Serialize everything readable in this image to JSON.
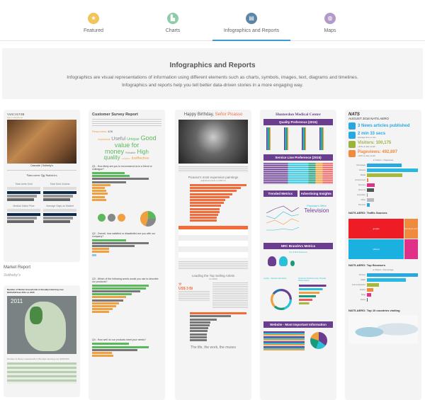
{
  "nav": {
    "tabs": [
      {
        "label": "Featured",
        "icon": "star-icon",
        "color": "#f2c55c"
      },
      {
        "label": "Charts",
        "icon": "bar-chart-icon",
        "color": "#8fcca8"
      },
      {
        "label": "Infographics and Reports",
        "icon": "report-icon",
        "color": "#5b86a8",
        "active": true
      },
      {
        "label": "Maps",
        "icon": "globe-icon",
        "color": "#b49ac9"
      }
    ]
  },
  "hero": {
    "title": "Infographics and Reports",
    "description": "Infographics are visual representations of information using different elements such as charts, symbols, images, text, diagrams and timelines. Infographics and reports help you tell better data-driven stories in a more engaging way."
  },
  "market": {
    "brand": "VANCOUVER",
    "subtitle": "Qg Comparison",
    "logo": "Cascade | Sotheby's",
    "stats_title": "Vancouver Qg Statistics",
    "panels": [
      "Total Units Sold",
      "Total Sold Volume",
      "Median Sales Price",
      "Average Days on Market"
    ],
    "caption_title": "Market Report",
    "caption_author": "Sotheby's"
  },
  "brooklyn": {
    "title": "Number of Renter Households in Brooklyn Earning over $100,000/Year 2011 vs 2015",
    "map_year": "2011",
    "table_title": "Number of Renter Households in Brooklyn Earning over $100,000"
  },
  "survey": {
    "title": "Customer Survey Report",
    "responses_label": "Responses:",
    "responses": "426",
    "words": [
      {
        "t": "Impractical",
        "c": "#f0a040",
        "s": 3.5
      },
      {
        "t": "Useful",
        "c": "#888",
        "s": 7
      },
      {
        "t": "Unique",
        "c": "#5cb85c",
        "s": 5.5
      },
      {
        "t": "Good value for money",
        "c": "#5cb85c",
        "s": 9
      },
      {
        "t": "Reliable",
        "c": "#888",
        "s": 4
      },
      {
        "t": "High quality",
        "c": "#5cb85c",
        "s": 8
      },
      {
        "t": "Unstable",
        "c": "#f0a040",
        "s": 3
      },
      {
        "t": "Ineffective",
        "c": "#f0a040",
        "s": 5.5
      }
    ],
    "q1": "Q1 - How likely are you to recommend us to a friend or colleague?",
    "q2": "Q2 - Overall, how satisfied or dissatisfied are you with our company?",
    "q3": "Q3 - Which of the following words would you use to describe our products?",
    "q4": "Q4 - How well do our products meet your needs?",
    "q1_bars": [
      {
        "v": 0.58,
        "c": "#5cb85c"
      },
      {
        "v": 0.66,
        "c": "#5cb85c"
      },
      {
        "v": 1,
        "c": "#777"
      },
      {
        "v": 0.6,
        "c": "#777"
      },
      {
        "v": 0.32,
        "c": "#f0a040"
      },
      {
        "v": 0.22,
        "c": "#f0a040"
      },
      {
        "v": 0.25,
        "c": "#f0a040"
      },
      {
        "v": 0.28,
        "c": "#f0a040"
      },
      {
        "v": 0.22,
        "c": "#f0a040"
      },
      {
        "v": 0.25,
        "c": "#f0a040"
      }
    ],
    "q2_bars": [
      {
        "v": 0.6,
        "c": "#5cb85c"
      },
      {
        "v": 1,
        "c": "#777"
      },
      {
        "v": 0.75,
        "c": "#777"
      },
      {
        "v": 0.3,
        "c": "#f0a040"
      },
      {
        "v": 0.3,
        "c": "#f0a040"
      },
      {
        "v": 0.08,
        "c": "#8ac8e8"
      }
    ],
    "q3_bars": [
      {
        "v": 1,
        "c": "#5cb85c"
      },
      {
        "v": 0.95,
        "c": "#5cb85c"
      },
      {
        "v": 0.85,
        "c": "#777"
      },
      {
        "v": 0.7,
        "c": "#5cb85c"
      },
      {
        "v": 0.6,
        "c": "#f0a040"
      },
      {
        "v": 0.55,
        "c": "#777"
      },
      {
        "v": 0.48,
        "c": "#f0a040"
      },
      {
        "v": 0.42,
        "c": "#f0a040"
      },
      {
        "v": 0.36,
        "c": "#f0a040"
      },
      {
        "v": 0.3,
        "c": "#f0a040"
      }
    ],
    "q4_bars": [
      {
        "v": 0.65,
        "c": "#5cb85c"
      },
      {
        "v": 1,
        "c": "#5cb85c"
      },
      {
        "v": 0.8,
        "c": "#777"
      },
      {
        "v": 0.35,
        "c": "#f0a040"
      },
      {
        "v": 0.38,
        "c": "#f0a040"
      }
    ]
  },
  "picasso": {
    "title_a": "Happy Birthday, ",
    "title_b": "Señor Picasso",
    "chart_title": "Picasso's most expensive paintings",
    "chart_sub": "(adjusted prices in USD m)",
    "paintings": [
      {
        "v": 1
      },
      {
        "v": 0.9
      },
      {
        "v": 0.82
      },
      {
        "v": 0.75
      },
      {
        "v": 0.7
      },
      {
        "v": 0.62
      },
      {
        "v": 0.6
      },
      {
        "v": 0.55
      },
      {
        "v": 0.53
      },
      {
        "v": 0.52
      },
      {
        "v": 0.5
      },
      {
        "v": 0.48
      },
      {
        "v": 0.47
      }
    ],
    "artists_title": "Leading the Top Selling Artists",
    "artists_year": "(in 2015)",
    "big_value": "US$ 3 Bi",
    "artists": [
      {
        "v": 1
      },
      {
        "v": 0.72
      },
      {
        "v": 0.48
      },
      {
        "v": 0.36
      },
      {
        "v": 0.35
      },
      {
        "v": 0.33
      },
      {
        "v": 0.31
      },
      {
        "v": 0.3
      },
      {
        "v": 0.3
      },
      {
        "v": 0.3
      }
    ],
    "footer": "The life, the work, the muses"
  },
  "hunterdon": {
    "title": "Hunterdon Medical Center",
    "s1": "Quality Preference (2015)",
    "s2": "Service Line Preference (2015)",
    "s3": "Trended Metrics",
    "s4": "Advertising Insights",
    "cloud_big": "Television",
    "cloud_small": "Physician's Office",
    "s5": "NRC BrandArc Metrics",
    "s6": "Top of Mind Awareness",
    "s7": "Loyalty - Selection Sensitivity",
    "s8": "Hunterdon Medical Center Hospital Differentiators",
    "s9": "Website - Most Important Information"
  },
  "nats": {
    "logo": "NATS",
    "month": "AUGUST 2016 NATS.AERO",
    "kpis": [
      {
        "icon": "monitor-icon",
        "value": "3 News articles published",
        "note": "",
        "color": "#29a8e0"
      },
      {
        "icon": "clock-icon",
        "value": "2 min 33 secs",
        "note": "Average time on site",
        "color": "#29a8e0"
      },
      {
        "icon": "user-icon",
        "value": "Visitors: 100,175",
        "note": "+41% on last month",
        "color": "#9bb33a"
      },
      {
        "icon": "eye-icon",
        "value": "Pageviews: 492,897",
        "note": "+20% on last month",
        "color": "#f08a3c"
      }
    ],
    "legend": [
      "Visitors",
      "Pageviews"
    ],
    "pages": [
      {
        "l": "Homepage",
        "v": 0.68,
        "c": "#29a8e0"
      },
      {
        "l": "Careers",
        "v": 1,
        "c": "#29b8e0"
      },
      {
        "l": "Media",
        "v": 0.7,
        "c": "#a8b83a"
      },
      {
        "l": "Environment",
        "v": 0.03,
        "c": "#f08a3c"
      },
      {
        "l": "Services",
        "v": 0.15,
        "c": "#e0308a"
      },
      {
        "l": "About us",
        "v": 0.14,
        "c": "#555"
      },
      {
        "l": "Innovation",
        "v": 0.01,
        "c": "#999"
      },
      {
        "l": "Other",
        "v": 0.14,
        "c": "#bbb"
      },
      {
        "l": "Discover",
        "v": 0.06,
        "c": "#29a8e0"
      }
    ],
    "traffic_title": "NATS.AERO: Traffic Sources",
    "tm": [
      "google",
      "facebook.com",
      "(direct)"
    ],
    "browsers_title": "NATS.AERO: Top Browsers",
    "browser_legend": [
      "Visitors",
      "Percentage"
    ],
    "browsers": [
      {
        "l": "Chrome",
        "v": 1,
        "c": "#29a8e0"
      },
      {
        "l": "Safari",
        "v": 0.77,
        "c": "#29b8e0"
      },
      {
        "l": "Internet Explorer",
        "v": 0.23,
        "c": "#a8b83a"
      },
      {
        "l": "Firefox",
        "v": 0.13,
        "c": "#f08a3c"
      },
      {
        "l": "Edge",
        "v": 0.08,
        "c": "#e0308a"
      },
      {
        "l": "Opera",
        "v": 0.02,
        "c": "#555"
      }
    ],
    "countries_title": "NATS.AERO: Top 10 countries visiting"
  }
}
